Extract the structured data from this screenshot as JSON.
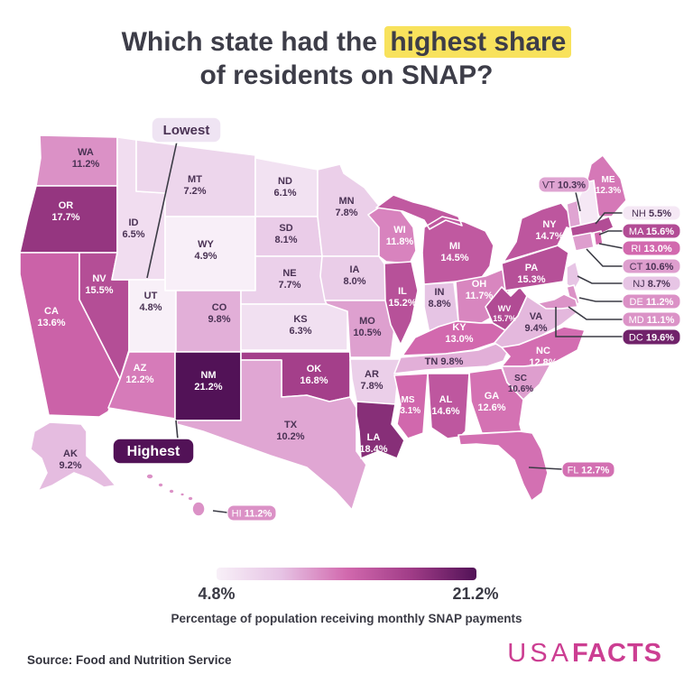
{
  "title": {
    "prefix": "Which state had the ",
    "highlight": "highest share",
    "line2": "of residents on SNAP?"
  },
  "annotations": {
    "lowest": "Lowest",
    "highest": "Highest"
  },
  "value_suffix": "%",
  "chart_data": {
    "type": "choropleth-map",
    "metric": "Percentage of population receiving monthly SNAP payments",
    "range": [
      4.8,
      21.2
    ],
    "lowest_state": "UT",
    "highest_state": "NM",
    "states": [
      {
        "abbr": "WA",
        "value": "11.2%"
      },
      {
        "abbr": "OR",
        "value": "17.7%"
      },
      {
        "abbr": "CA",
        "value": "13.6%"
      },
      {
        "abbr": "NV",
        "value": "15.5%"
      },
      {
        "abbr": "ID",
        "value": "6.5%"
      },
      {
        "abbr": "MT",
        "value": "7.2%"
      },
      {
        "abbr": "WY",
        "value": "4.9%"
      },
      {
        "abbr": "UT",
        "value": "4.8%"
      },
      {
        "abbr": "CO",
        "value": "9.8%"
      },
      {
        "abbr": "AZ",
        "value": "12.2%"
      },
      {
        "abbr": "NM",
        "value": "21.2%"
      },
      {
        "abbr": "ND",
        "value": "6.1%"
      },
      {
        "abbr": "SD",
        "value": "8.1%"
      },
      {
        "abbr": "NE",
        "value": "7.7%"
      },
      {
        "abbr": "KS",
        "value": "6.3%"
      },
      {
        "abbr": "OK",
        "value": "16.8%"
      },
      {
        "abbr": "TX",
        "value": "10.2%"
      },
      {
        "abbr": "MN",
        "value": "7.8%"
      },
      {
        "abbr": "IA",
        "value": "8.0%"
      },
      {
        "abbr": "MO",
        "value": "10.5%"
      },
      {
        "abbr": "AR",
        "value": "7.8%"
      },
      {
        "abbr": "LA",
        "value": "18.4%"
      },
      {
        "abbr": "WI",
        "value": "11.8%"
      },
      {
        "abbr": "IL",
        "value": "15.2%"
      },
      {
        "abbr": "IN",
        "value": "8.8%"
      },
      {
        "abbr": "MI",
        "value": "14.5%"
      },
      {
        "abbr": "OH",
        "value": "11.7%"
      },
      {
        "abbr": "KY",
        "value": "13.0%"
      },
      {
        "abbr": "TN",
        "value": "9.8%"
      },
      {
        "abbr": "WV",
        "value": "15.7%"
      },
      {
        "abbr": "VA",
        "value": "9.4%"
      },
      {
        "abbr": "NC",
        "value": "12.8%"
      },
      {
        "abbr": "SC",
        "value": "10.6%"
      },
      {
        "abbr": "GA",
        "value": "12.6%"
      },
      {
        "abbr": "AL",
        "value": "14.6%"
      },
      {
        "abbr": "MS",
        "value": "13.1%"
      },
      {
        "abbr": "PA",
        "value": "15.3%"
      },
      {
        "abbr": "NY",
        "value": "14.7%"
      },
      {
        "abbr": "ME",
        "value": "12.3%"
      },
      {
        "abbr": "VT",
        "value": "10.3%"
      },
      {
        "abbr": "NH",
        "value": "5.5%"
      },
      {
        "abbr": "MA",
        "value": "15.6%"
      },
      {
        "abbr": "RI",
        "value": "13.0%"
      },
      {
        "abbr": "CT",
        "value": "10.6%"
      },
      {
        "abbr": "NJ",
        "value": "8.7%"
      },
      {
        "abbr": "DE",
        "value": "11.2%"
      },
      {
        "abbr": "MD",
        "value": "11.1%"
      },
      {
        "abbr": "DC",
        "value": "19.6%"
      },
      {
        "abbr": "FL",
        "value": "12.7%"
      },
      {
        "abbr": "AK",
        "value": "9.2%"
      },
      {
        "abbr": "HI",
        "value": "11.2%"
      }
    ]
  },
  "legend": {
    "min_label": "4.8%",
    "max_label": "21.2%",
    "caption": "Percentage of population receiving monthly SNAP payments"
  },
  "colors": {
    "scale": [
      "#f8f0f8",
      "#e6c3e4",
      "#d269ae",
      "#a03c87",
      "#521257"
    ],
    "accent_yellow": "#f8e25c",
    "dark_label": "#4a3254",
    "line": "#3b3b45",
    "logo_pink": "#cc3e92",
    "lowest_pill_bg": "#efe4f3"
  },
  "footer": {
    "source": "Source: Food and Nutrition Service",
    "logo_prefix": "USA",
    "logo_suffix": "FACTS"
  }
}
